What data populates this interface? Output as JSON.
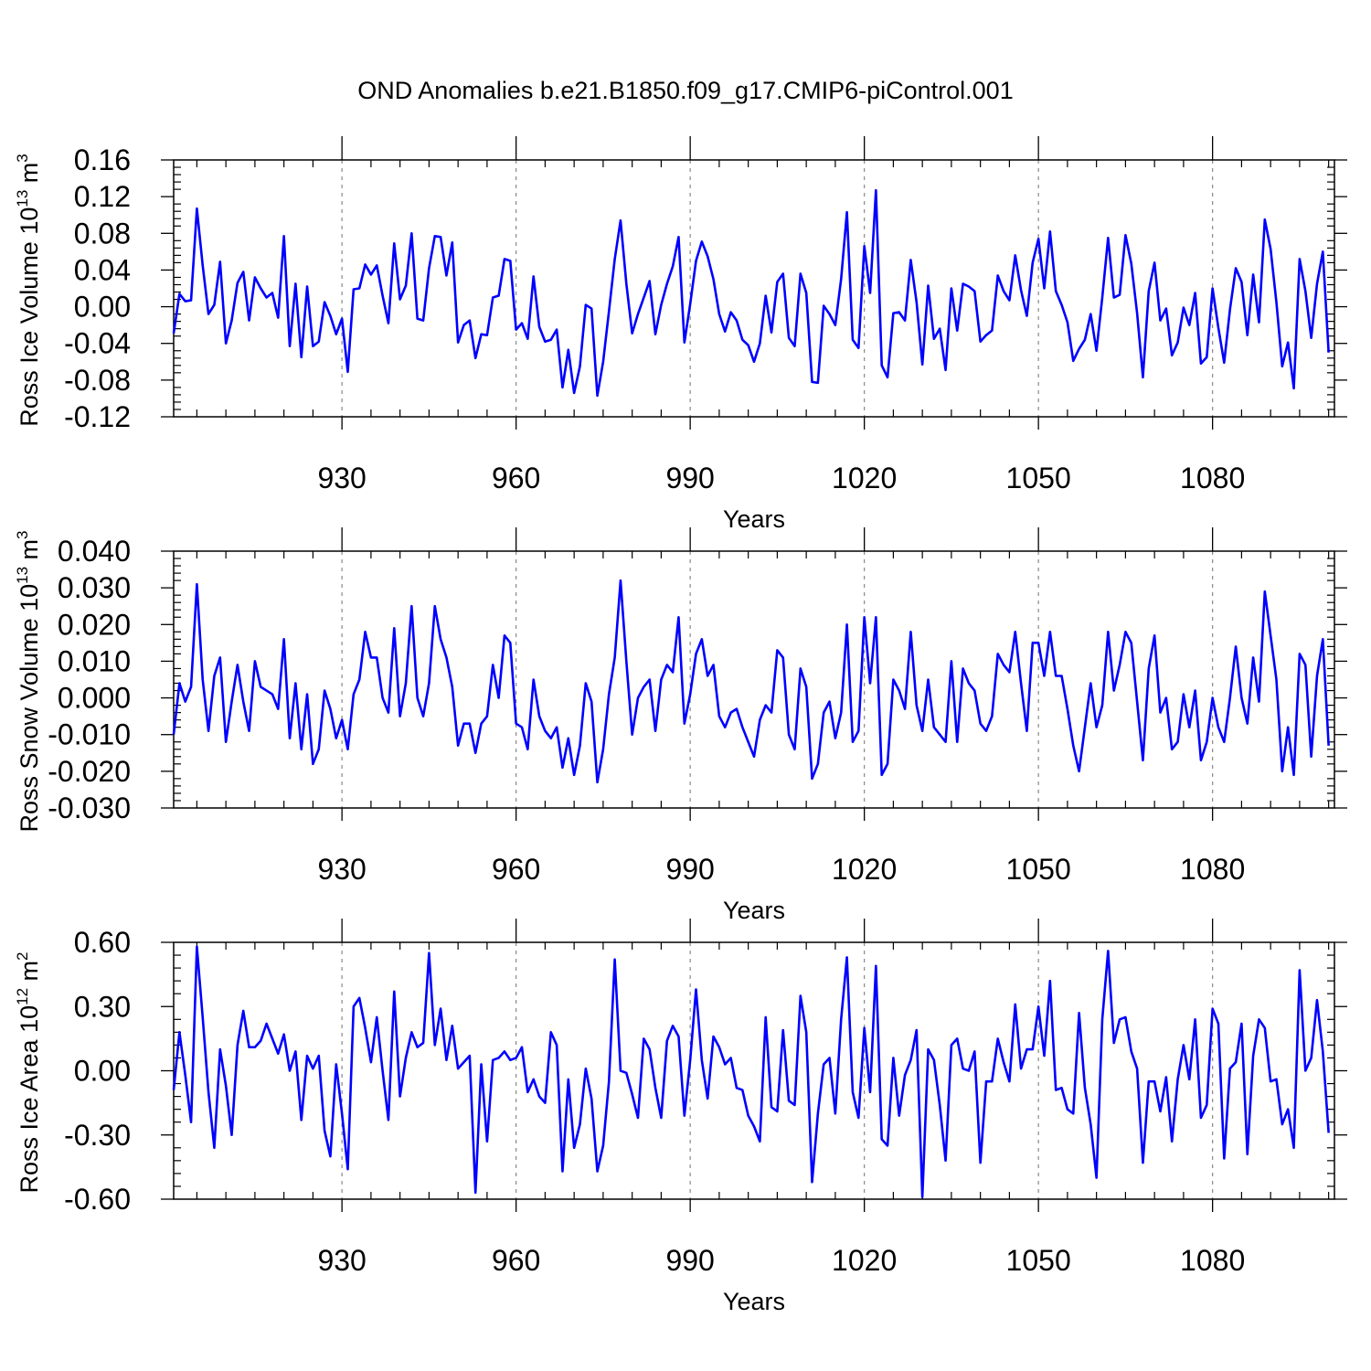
{
  "title": "OND Anomalies b.e21.B1850.f09_g17.CMIP6-piControl.001",
  "line_color": "#0000ff",
  "chart_data": [
    {
      "type": "line",
      "ylabel": "Ross Ice Volume 10",
      "ylabel_exp": "13",
      "ylabel_unit": "m",
      "ylabel_unit_exp": "3",
      "xlabel": "Years",
      "xlim": [
        901,
        1101
      ],
      "ylim": [
        -0.12,
        0.16
      ],
      "ytick_values": [
        -0.12,
        -0.08,
        -0.04,
        0.0,
        0.04,
        0.08,
        0.12,
        0.16
      ],
      "ytick_labels": [
        "-0.12",
        "-0.08",
        "-0.04",
        "0.00",
        "0.04",
        "0.08",
        "0.12",
        "0.16"
      ],
      "xtick_values": [
        930,
        960,
        990,
        1020,
        1050,
        1080
      ],
      "xtick_labels": [
        "930",
        "960",
        "990",
        "1020",
        "1050",
        "1080"
      ],
      "x_start": 901,
      "values": [
        -0.029,
        0.014,
        0.006,
        0.007,
        0.107,
        0.045,
        -0.008,
        0.002,
        0.049,
        -0.04,
        -0.015,
        0.026,
        0.038,
        -0.015,
        0.032,
        0.02,
        0.01,
        0.015,
        -0.012,
        0.077,
        -0.043,
        0.025,
        -0.055,
        0.022,
        -0.043,
        -0.038,
        0.005,
        -0.01,
        -0.03,
        -0.013,
        -0.071,
        0.019,
        0.02,
        0.046,
        0.035,
        0.045,
        0.012,
        -0.018,
        0.069,
        0.008,
        0.023,
        0.08,
        -0.013,
        -0.015,
        0.042,
        0.077,
        0.076,
        0.034,
        0.07,
        -0.039,
        -0.02,
        -0.015,
        -0.056,
        -0.03,
        -0.031,
        0.01,
        0.012,
        0.052,
        0.05,
        -0.025,
        -0.018,
        -0.035,
        0.033,
        -0.022,
        -0.038,
        -0.036,
        -0.025,
        -0.088,
        -0.047,
        -0.094,
        -0.065,
        0.002,
        -0.002,
        -0.097,
        -0.06,
        -0.005,
        0.052,
        0.094,
        0.025,
        -0.029,
        -0.008,
        0.01,
        0.028,
        -0.03,
        0.002,
        0.025,
        0.044,
        0.076,
        -0.039,
        0.003,
        0.05,
        0.071,
        0.055,
        0.03,
        -0.008,
        -0.027,
        -0.006,
        -0.015,
        -0.036,
        -0.042,
        -0.06,
        -0.04,
        0.012,
        -0.028,
        0.027,
        0.036,
        -0.034,
        -0.043,
        0.036,
        0.015,
        -0.082,
        -0.083,
        0.001,
        -0.008,
        -0.02,
        0.03,
        0.103,
        -0.036,
        -0.045,
        0.066,
        0.015,
        0.127,
        -0.064,
        -0.077,
        -0.007,
        -0.006,
        -0.015,
        0.051,
        0.005,
        -0.063,
        0.023,
        -0.035,
        -0.024,
        -0.069,
        0.02,
        -0.026,
        0.025,
        0.022,
        0.017,
        -0.038,
        -0.031,
        -0.026,
        0.034,
        0.017,
        0.007,
        0.056,
        0.018,
        -0.01,
        0.048,
        0.074,
        0.02,
        0.082,
        0.017,
        0.002,
        -0.017,
        -0.059,
        -0.046,
        -0.036,
        -0.008,
        -0.048,
        0.01,
        0.075,
        0.01,
        0.013,
        0.078,
        0.047,
        -0.007,
        -0.077,
        0.017,
        0.048,
        -0.015,
        -0.002,
        -0.053,
        -0.039,
        -0.001,
        -0.02,
        0.015,
        -0.062,
        -0.055,
        0.02,
        -0.023,
        -0.061,
        -0.003,
        0.042,
        0.027,
        -0.031,
        0.035,
        -0.017,
        0.095,
        0.063,
        0.005,
        -0.065,
        -0.039,
        -0.089,
        0.052,
        0.017,
        -0.034,
        0.025,
        0.06,
        -0.05
      ]
    },
    {
      "type": "line",
      "ylabel": "Ross Snow Volume 10",
      "ylabel_exp": "13",
      "ylabel_unit": "m",
      "ylabel_unit_exp": "3",
      "xlabel": "Years",
      "xlim": [
        901,
        1101
      ],
      "ylim": [
        -0.03,
        0.04
      ],
      "ytick_values": [
        -0.03,
        -0.02,
        -0.01,
        0.0,
        0.01,
        0.02,
        0.03,
        0.04
      ],
      "ytick_labels": [
        "-0.030",
        "-0.020",
        "-0.010",
        "0.000",
        "0.010",
        "0.020",
        "0.030",
        "0.040"
      ],
      "xtick_values": [
        930,
        960,
        990,
        1020,
        1050,
        1080
      ],
      "xtick_labels": [
        "930",
        "960",
        "990",
        "1020",
        "1050",
        "1080"
      ],
      "x_start": 901,
      "values": [
        -0.01,
        0.004,
        -0.001,
        0.003,
        0.031,
        0.005,
        -0.009,
        0.006,
        0.011,
        -0.012,
        -0.001,
        0.009,
        -0.001,
        -0.009,
        0.01,
        0.003,
        0.002,
        0.001,
        -0.003,
        0.016,
        -0.011,
        0.004,
        -0.014,
        0.001,
        -0.018,
        -0.014,
        0.002,
        -0.003,
        -0.011,
        -0.006,
        -0.014,
        0.001,
        0.005,
        0.018,
        0.011,
        0.011,
        0.0,
        -0.004,
        0.019,
        -0.005,
        0.004,
        0.025,
        0.0,
        -0.005,
        0.004,
        0.025,
        0.016,
        0.011,
        0.003,
        -0.013,
        -0.007,
        -0.007,
        -0.015,
        -0.007,
        -0.005,
        0.009,
        0.0,
        0.017,
        0.015,
        -0.007,
        -0.008,
        -0.014,
        0.005,
        -0.005,
        -0.009,
        -0.011,
        -0.008,
        -0.019,
        -0.011,
        -0.021,
        -0.013,
        0.004,
        -0.001,
        -0.023,
        -0.014,
        0.001,
        0.011,
        0.032,
        0.01,
        -0.01,
        0.0,
        0.003,
        0.005,
        -0.009,
        0.005,
        0.009,
        0.007,
        0.022,
        -0.007,
        0.001,
        0.012,
        0.016,
        0.006,
        0.009,
        -0.005,
        -0.008,
        -0.004,
        -0.003,
        -0.008,
        -0.012,
        -0.016,
        -0.006,
        -0.002,
        -0.004,
        0.013,
        0.011,
        -0.01,
        -0.014,
        0.008,
        0.003,
        -0.022,
        -0.018,
        -0.004,
        -0.001,
        -0.011,
        -0.004,
        0.02,
        -0.012,
        -0.009,
        0.022,
        0.004,
        0.022,
        -0.021,
        -0.018,
        0.005,
        0.002,
        -0.003,
        0.018,
        -0.002,
        -0.009,
        0.005,
        -0.008,
        -0.01,
        -0.012,
        0.01,
        -0.012,
        0.008,
        0.004,
        0.002,
        -0.007,
        -0.009,
        -0.005,
        0.012,
        0.009,
        0.007,
        0.018,
        0.004,
        -0.009,
        0.015,
        0.015,
        0.006,
        0.018,
        0.006,
        0.006,
        -0.003,
        -0.013,
        -0.02,
        -0.008,
        0.004,
        -0.008,
        -0.002,
        0.018,
        0.002,
        0.009,
        0.018,
        0.015,
        -0.001,
        -0.017,
        0.008,
        0.017,
        -0.004,
        0.0,
        -0.014,
        -0.012,
        0.001,
        -0.008,
        0.002,
        -0.017,
        -0.012,
        0.0,
        -0.008,
        -0.012,
        0.0,
        0.014,
        0.0,
        -0.007,
        0.011,
        -0.001,
        0.029,
        0.017,
        0.005,
        -0.02,
        -0.008,
        -0.021,
        0.012,
        0.009,
        -0.016,
        0.006,
        0.016,
        -0.013
      ]
    },
    {
      "type": "line",
      "ylabel": "Ross Ice Area 10",
      "ylabel_exp": "12",
      "ylabel_unit": "m",
      "ylabel_unit_exp": "2",
      "xlabel": "Years",
      "xlim": [
        901,
        1101
      ],
      "ylim": [
        -0.6,
        0.6
      ],
      "ytick_values": [
        -0.6,
        -0.3,
        0.0,
        0.3,
        0.6
      ],
      "ytick_labels": [
        "-0.60",
        "-0.30",
        "0.00",
        "0.30",
        "0.60"
      ],
      "xtick_values": [
        930,
        960,
        990,
        1020,
        1050,
        1080
      ],
      "xtick_labels": [
        "930",
        "960",
        "990",
        "1020",
        "1050",
        "1080"
      ],
      "x_start": 901,
      "values": [
        -0.09,
        0.18,
        -0.02,
        -0.24,
        0.58,
        0.25,
        -0.1,
        -0.36,
        0.1,
        -0.07,
        -0.3,
        0.12,
        0.28,
        0.11,
        0.11,
        0.14,
        0.22,
        0.15,
        0.08,
        0.17,
        0.0,
        0.09,
        -0.23,
        0.07,
        0.01,
        0.07,
        -0.28,
        -0.4,
        0.03,
        -0.2,
        -0.46,
        0.3,
        0.34,
        0.2,
        0.04,
        0.25,
        0.0,
        -0.23,
        0.37,
        -0.12,
        0.06,
        0.18,
        0.11,
        0.13,
        0.55,
        0.12,
        0.29,
        0.05,
        0.21,
        0.01,
        0.04,
        0.07,
        -0.57,
        0.03,
        -0.33,
        0.05,
        0.06,
        0.09,
        0.05,
        0.06,
        0.11,
        -0.1,
        -0.04,
        -0.12,
        -0.15,
        0.18,
        0.12,
        -0.47,
        -0.04,
        -0.36,
        -0.25,
        0.01,
        -0.13,
        -0.47,
        -0.35,
        -0.05,
        0.52,
        0.0,
        -0.01,
        -0.11,
        -0.22,
        0.15,
        0.1,
        -0.08,
        -0.22,
        0.14,
        0.21,
        0.16,
        -0.21,
        0.05,
        0.38,
        0.05,
        -0.13,
        0.16,
        0.11,
        0.03,
        0.06,
        -0.08,
        -0.09,
        -0.21,
        -0.26,
        -0.33,
        0.25,
        -0.17,
        -0.19,
        0.19,
        -0.14,
        -0.16,
        0.35,
        0.18,
        -0.52,
        -0.2,
        0.03,
        0.06,
        -0.2,
        0.24,
        0.53,
        -0.1,
        -0.22,
        0.2,
        -0.1,
        0.49,
        -0.32,
        -0.35,
        0.06,
        -0.21,
        -0.02,
        0.05,
        0.19,
        -0.59,
        0.1,
        0.05,
        -0.16,
        -0.42,
        0.12,
        0.15,
        0.01,
        0.0,
        0.09,
        -0.43,
        -0.05,
        -0.05,
        0.15,
        0.04,
        -0.05,
        0.31,
        0.01,
        0.1,
        0.1,
        0.3,
        0.07,
        0.42,
        -0.09,
        -0.08,
        -0.18,
        -0.2,
        0.27,
        -0.08,
        -0.25,
        -0.5,
        0.24,
        0.56,
        0.13,
        0.24,
        0.25,
        0.09,
        0.01,
        -0.43,
        -0.05,
        -0.05,
        -0.19,
        -0.03,
        -0.33,
        -0.04,
        0.12,
        -0.04,
        0.24,
        -0.22,
        -0.16,
        0.29,
        0.22,
        -0.41,
        0.01,
        0.04,
        0.22,
        -0.39,
        0.07,
        0.24,
        0.2,
        -0.05,
        -0.04,
        -0.25,
        -0.18,
        -0.36,
        0.47,
        0.0,
        0.06,
        0.33,
        0.09,
        -0.29
      ]
    }
  ]
}
